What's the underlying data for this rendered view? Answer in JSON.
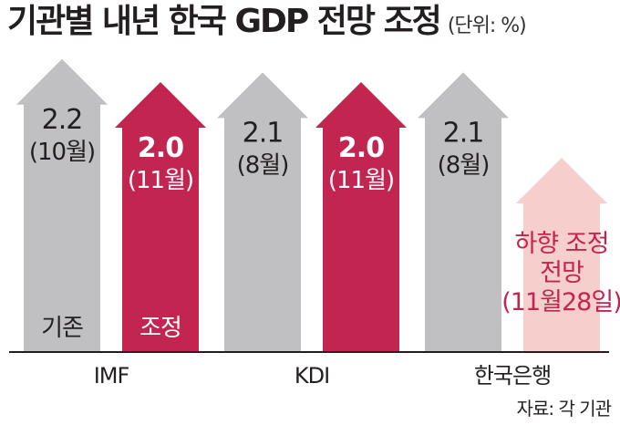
{
  "title": "기관별 내년 한국 GDP 전망 조정",
  "unit": "(단위: %)",
  "source": "자료: 각 기관",
  "colors": {
    "existing": "#c0c0c2",
    "adjusted": "#c2254f",
    "pending": "#f6cfcc",
    "pending_text": "#c2254f",
    "baseline": "#231f20"
  },
  "chart_data": {
    "type": "bar",
    "title": "기관별 내년 한국 GDP 전망 조정",
    "unit": "%",
    "categories": [
      "IMF",
      "KDI",
      "한국은행"
    ],
    "series": [
      {
        "name": "기존",
        "values": [
          2.2,
          2.1,
          2.1
        ],
        "labels": [
          {
            "value": "2.2",
            "date": "(10월)"
          },
          {
            "value": "2.1",
            "date": "(8월)"
          },
          {
            "value": "2.1",
            "date": "(8월)"
          }
        ]
      },
      {
        "name": "조정",
        "values": [
          2.0,
          2.0,
          null
        ],
        "labels": [
          {
            "value": "2.0",
            "date": "(11월)"
          },
          {
            "value": "2.0",
            "date": "(11월)"
          },
          {
            "value": "",
            "date": ""
          }
        ]
      }
    ],
    "legend_in_bars": [
      "기존",
      "조정"
    ],
    "annotation": {
      "category": "한국은행",
      "lines": [
        "하향 조정",
        "전망",
        "(11월28일)"
      ]
    }
  }
}
